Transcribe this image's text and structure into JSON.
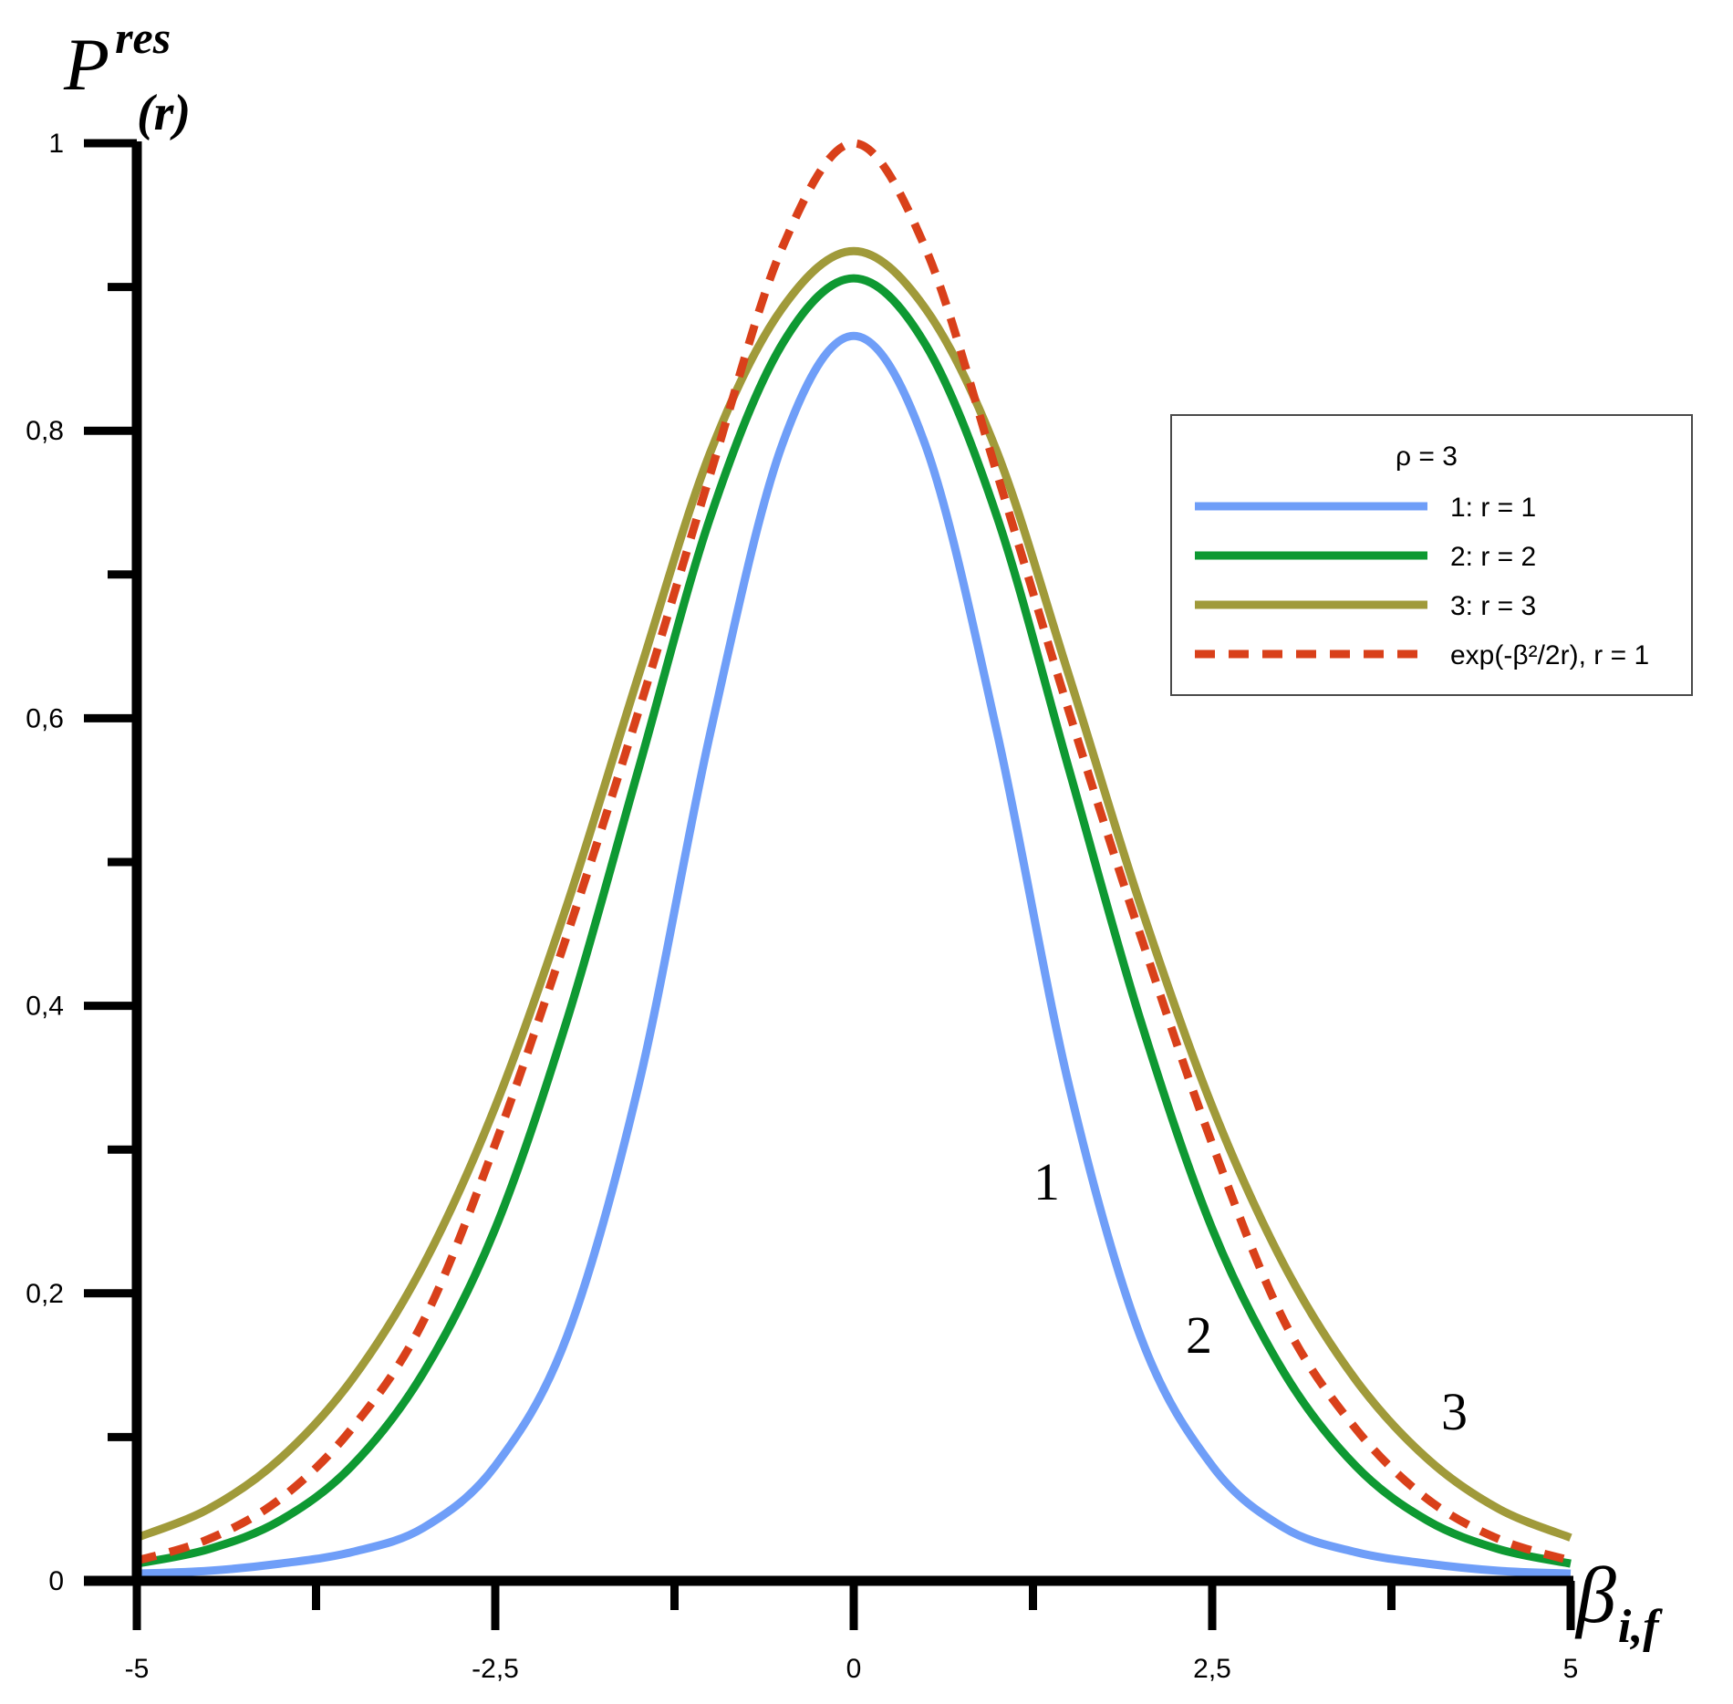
{
  "chart_data": {
    "type": "line",
    "ylabel": {
      "main": "P",
      "sup": "res",
      "sub": "(r)"
    },
    "xlabel": {
      "main": "β",
      "sub": "i,f"
    },
    "xlim": [
      -5,
      5
    ],
    "ylim": [
      0,
      1
    ],
    "x_ticks": [
      {
        "value": -5,
        "label": "-5"
      },
      {
        "value": -2.5,
        "label": "-2,5"
      },
      {
        "value": 0,
        "label": "0"
      },
      {
        "value": 2.5,
        "label": "2,5"
      },
      {
        "value": 5,
        "label": "5"
      }
    ],
    "x_minor_ticks": [
      -3.75,
      -1.25,
      1.25,
      3.75
    ],
    "y_ticks": [
      {
        "value": 0,
        "label": "0"
      },
      {
        "value": 0.2,
        "label": "0,2"
      },
      {
        "value": 0.4,
        "label": "0,4"
      },
      {
        "value": 0.6,
        "label": "0,6"
      },
      {
        "value": 0.8,
        "label": "0,8"
      },
      {
        "value": 1,
        "label": "1"
      }
    ],
    "y_minor_ticks": [
      0.1,
      0.3,
      0.5,
      0.7,
      0.9
    ],
    "grid": false,
    "legend": {
      "position": "right",
      "title": "ρ = 3",
      "entries": [
        "1: r = 1",
        "2: r = 2",
        "3: r = 3",
        "exp(-β²/2r), r = 1"
      ]
    },
    "x": [
      -5,
      -4.5,
      -4,
      -3.5,
      -3,
      -2.5,
      -2,
      -1.5,
      -1,
      -0.5,
      0,
      0.5,
      1,
      1.5,
      2,
      2.5,
      3,
      3.5,
      4,
      4.5,
      5
    ],
    "series": [
      {
        "name": "1: r = 1",
        "curve_label": "1",
        "color": "#6f9ef8",
        "dash": false,
        "values": [
          0.005,
          0.007,
          0.012,
          0.02,
          0.037,
          0.08,
          0.17,
          0.345,
          0.59,
          0.79,
          0.866,
          0.79,
          0.59,
          0.345,
          0.17,
          0.08,
          0.037,
          0.02,
          0.012,
          0.007,
          0.005
        ]
      },
      {
        "name": "2: r = 2",
        "curve_label": "2",
        "color": "#0e9932",
        "dash": false,
        "values": [
          0.012,
          0.022,
          0.042,
          0.08,
          0.145,
          0.245,
          0.39,
          0.565,
          0.74,
          0.86,
          0.906,
          0.86,
          0.74,
          0.565,
          0.39,
          0.245,
          0.145,
          0.08,
          0.042,
          0.022,
          0.012
        ]
      },
      {
        "name": "3: r = 3",
        "curve_label": "3",
        "color": "#a09a3a",
        "dash": false,
        "values": [
          0.03,
          0.05,
          0.085,
          0.14,
          0.22,
          0.33,
          0.47,
          0.63,
          0.785,
          0.885,
          0.925,
          0.885,
          0.785,
          0.63,
          0.47,
          0.33,
          0.22,
          0.14,
          0.085,
          0.05,
          0.03
        ]
      },
      {
        "name": "exp(-β²/2r), r = 1",
        "color": "#d9401a",
        "dash": true,
        "values": [
          0.014,
          0.029,
          0.057,
          0.106,
          0.181,
          0.304,
          0.449,
          0.605,
          0.77,
          0.927,
          1.0,
          0.927,
          0.77,
          0.605,
          0.449,
          0.304,
          0.181,
          0.106,
          0.057,
          0.029,
          0.014
        ]
      }
    ]
  }
}
